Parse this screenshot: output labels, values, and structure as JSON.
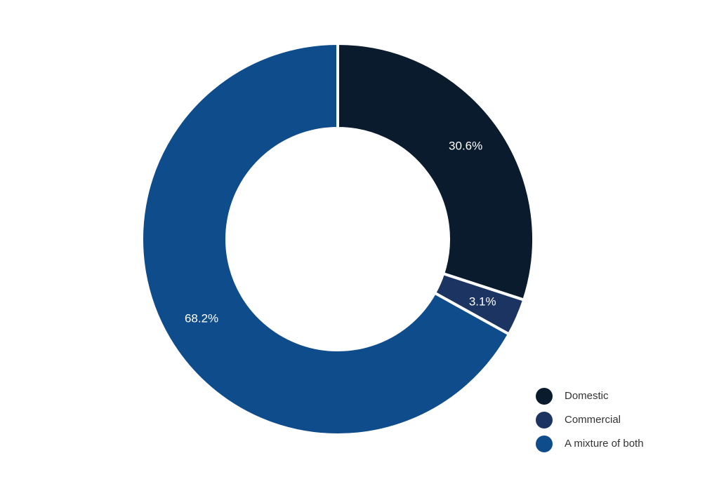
{
  "chart_data": {
    "type": "donut",
    "categories": [
      "Domestic",
      "Commercial",
      "A mixture of both"
    ],
    "values": [
      30.6,
      3.1,
      68.2
    ],
    "value_labels": [
      "30.6%",
      "3.1%",
      "68.2%"
    ],
    "colors": [
      "#0a1b2e",
      "#1c3461",
      "#0f4c8c"
    ],
    "legend": "lower right"
  }
}
